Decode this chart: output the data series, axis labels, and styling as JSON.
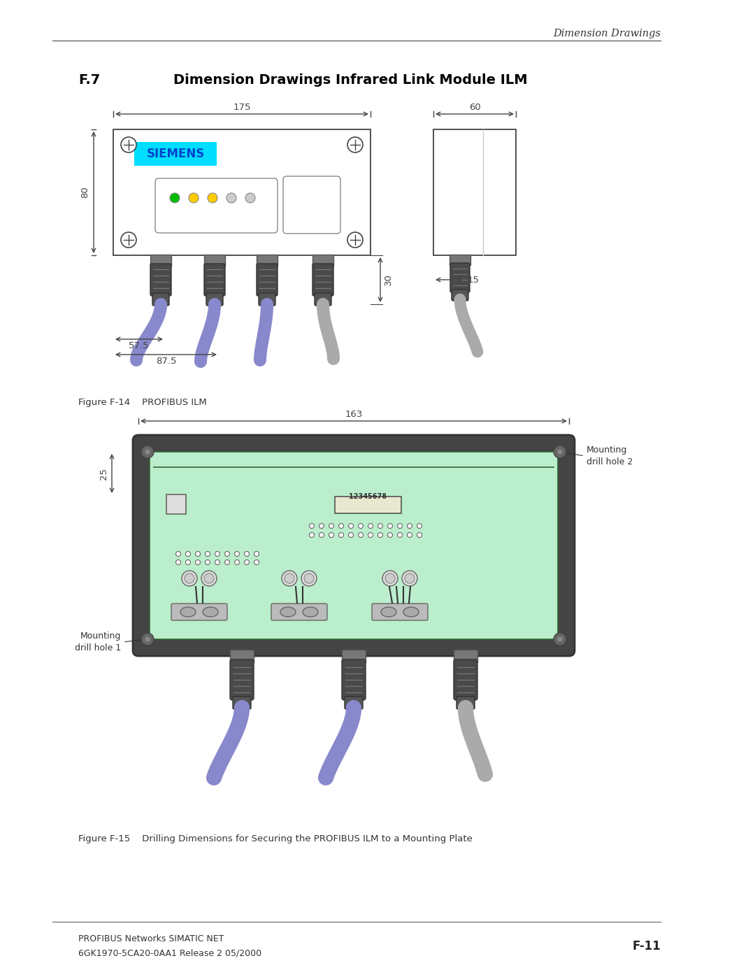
{
  "page_title_italic": "Dimension Drawings",
  "section_heading_num": "F.7",
  "section_heading_text": "Dimension Drawings Infrared Link Module ILM",
  "fig14_caption": "Figure F-14    PROFIBUS ILM",
  "fig15_caption": "Figure F-15    Drilling Dimensions for Securing the PROFIBUS ILM to a Mounting Plate",
  "footer_left_line1": "PROFIBUS Networks SIMATIC NET",
  "footer_left_line2": "6GK1970-5CA20-0AA1 Release 2 05/2000",
  "footer_right": "F-11",
  "bg_color": "#ffffff",
  "line_color": "#444444",
  "siemens_bg": "#00ddff",
  "siemens_text": "#0044cc",
  "box_fill": "#f2f2f2",
  "led_green": "#00bb00",
  "led_yellow": "#ffcc00",
  "led_off": "#cccccc",
  "connector_dark": "#555555",
  "connector_mid": "#666666",
  "connector_light": "#999999",
  "cable_blue": "#8888cc",
  "cable_gray": "#aaaaaa",
  "ilm2_outer": "#444444",
  "ilm2_green": "#bbeecc",
  "ilm2_inner": "#ccf0cc",
  "terminal_gray": "#aaaaaa",
  "terminal_green": "#44aa44",
  "screw_gray": "#888888"
}
